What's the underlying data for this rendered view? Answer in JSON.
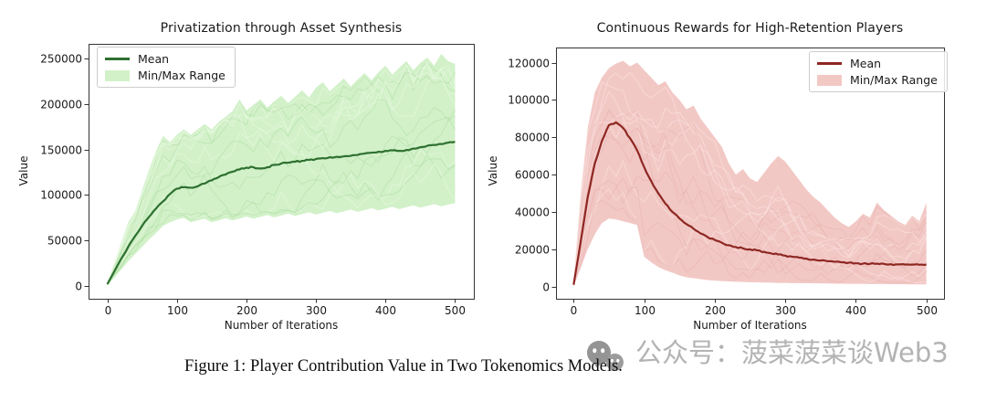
{
  "page": {
    "background": "#ffffff"
  },
  "caption": {
    "text": "Figure 1: Player Contribution Value in Two Tokenomics Models."
  },
  "watermark": {
    "icon": "wechat-icon",
    "text": "公众号：菠菜菠菜谈Web3",
    "color": "#b3b3b3",
    "icon_color": "#949494"
  },
  "chart_data": [
    {
      "type": "line",
      "title": "Privatization through Asset Synthesis",
      "xlabel": "Number of Iterations",
      "ylabel": "Value",
      "legend": [
        {
          "label": "Mean",
          "swatch": "line"
        },
        {
          "label": "Min/Max Range",
          "swatch": "patch"
        }
      ],
      "legend_position": "upper left",
      "grid": false,
      "colors": {
        "mean": "#2e7030",
        "band": "#d2f1c9",
        "runs_dark": "#aedca3",
        "runs_light": "#e9f9e2",
        "axis": "#333333",
        "tick_text": "#1a1a1a"
      },
      "xlim": [
        -27,
        527
      ],
      "ylim": [
        -14000,
        266000
      ],
      "xticks": [
        0,
        100,
        200,
        300,
        400,
        500
      ],
      "yticks": [
        0,
        50000,
        100000,
        150000,
        200000,
        250000
      ],
      "x": [
        0,
        10,
        20,
        30,
        40,
        50,
        60,
        70,
        80,
        90,
        100,
        110,
        120,
        130,
        140,
        150,
        160,
        170,
        180,
        190,
        200,
        210,
        220,
        230,
        240,
        250,
        260,
        270,
        280,
        290,
        300,
        310,
        320,
        330,
        340,
        350,
        360,
        370,
        380,
        390,
        400,
        410,
        420,
        430,
        440,
        450,
        460,
        470,
        480,
        490,
        500
      ],
      "mean": [
        2000,
        16000,
        30000,
        43000,
        55000,
        66000,
        76000,
        85000,
        93000,
        101000,
        107000,
        108500,
        108000,
        109500,
        112500,
        116000,
        119500,
        122500,
        125500,
        128000,
        130000,
        130500,
        129000,
        130500,
        133000,
        134500,
        135500,
        136500,
        137500,
        138500,
        139500,
        140500,
        141500,
        142000,
        142500,
        143000,
        144000,
        145500,
        146500,
        147500,
        148500,
        149000,
        148500,
        149500,
        151000,
        152500,
        154000,
        155000,
        156000,
        157500,
        158500
      ],
      "max": [
        3000,
        25000,
        48000,
        70000,
        82000,
        105000,
        128000,
        148000,
        165000,
        158000,
        166000,
        172000,
        166000,
        172000,
        178000,
        172000,
        180000,
        186000,
        192000,
        205000,
        193000,
        199000,
        205000,
        196000,
        203000,
        209000,
        201000,
        208000,
        215000,
        207000,
        218000,
        224000,
        214000,
        221000,
        228000,
        219000,
        227000,
        234000,
        226000,
        235000,
        242000,
        232000,
        240000,
        247000,
        237000,
        245000,
        251000,
        242000,
        255000,
        247000,
        244000
      ],
      "min": [
        1000,
        9000,
        18000,
        27000,
        35000,
        43000,
        51000,
        58000,
        66000,
        70000,
        73000,
        75000,
        70000,
        72000,
        74000,
        70000,
        72000,
        74500,
        72000,
        74000,
        76500,
        74000,
        76000,
        78000,
        75500,
        77500,
        79500,
        77000,
        79000,
        81000,
        78500,
        80500,
        82500,
        80000,
        82000,
        84000,
        81500,
        83500,
        85500,
        83000,
        85000,
        87000,
        84500,
        86500,
        88500,
        86000,
        88000,
        90000,
        87500,
        89500,
        91000
      ],
      "n_runs": 14,
      "seed": 11
    },
    {
      "type": "line",
      "title": "Continuous Rewards for High-Retention Players",
      "xlabel": "Number of Iterations",
      "ylabel": "Value",
      "legend": [
        {
          "label": "Mean",
          "swatch": "line"
        },
        {
          "label": "Min/Max Range",
          "swatch": "patch"
        }
      ],
      "legend_position": "upper right",
      "grid": false,
      "colors": {
        "mean": "#8e2722",
        "band": "#f2c8c5",
        "runs_dark": "#e7b3af",
        "runs_light": "#fbe6e4",
        "axis": "#333333",
        "tick_text": "#1a1a1a"
      },
      "xlim": [
        -25,
        525
      ],
      "ylim": [
        -6500,
        128100
      ],
      "xticks": [
        0,
        100,
        200,
        300,
        400,
        500
      ],
      "yticks": [
        0,
        20000,
        40000,
        60000,
        80000,
        100000,
        120000
      ],
      "x": [
        0,
        10,
        20,
        30,
        40,
        50,
        60,
        70,
        80,
        90,
        100,
        110,
        120,
        130,
        140,
        150,
        160,
        170,
        180,
        190,
        200,
        210,
        220,
        230,
        240,
        250,
        260,
        270,
        280,
        290,
        300,
        310,
        320,
        330,
        340,
        350,
        360,
        370,
        380,
        390,
        400,
        410,
        420,
        430,
        440,
        450,
        460,
        470,
        480,
        490,
        500
      ],
      "mean": [
        1000,
        24000,
        48000,
        66000,
        78000,
        86500,
        88000,
        85000,
        79500,
        73000,
        64000,
        56500,
        50000,
        44500,
        40000,
        36500,
        33500,
        31000,
        28500,
        26500,
        25000,
        23500,
        22200,
        21200,
        20500,
        20000,
        19400,
        18600,
        17800,
        17200,
        16600,
        16000,
        15500,
        15000,
        14500,
        14000,
        13600,
        13300,
        13000,
        12800,
        12500,
        12300,
        12200,
        12300,
        12200,
        12000,
        11900,
        11800,
        11800,
        11700,
        11800
      ],
      "max": [
        2000,
        50000,
        85000,
        104000,
        112000,
        117000,
        119500,
        121000,
        118000,
        120000,
        116000,
        112000,
        108000,
        110000,
        104000,
        100000,
        95000,
        97000,
        90000,
        85000,
        80000,
        75000,
        66000,
        60000,
        63000,
        58000,
        56000,
        61000,
        66000,
        70000,
        67000,
        62000,
        57000,
        52000,
        48000,
        45000,
        41000,
        37000,
        34000,
        32000,
        35000,
        39000,
        37000,
        45000,
        41000,
        38000,
        35000,
        33000,
        38000,
        35000,
        45000
      ],
      "min": [
        500,
        10000,
        20000,
        28000,
        34000,
        36500,
        36000,
        35000,
        34000,
        33000,
        16000,
        13000,
        10500,
        8800,
        7500,
        6000,
        5000,
        4500,
        4000,
        3500,
        3200,
        3000,
        2800,
        2600,
        2500,
        2400,
        2300,
        2200,
        2100,
        2000,
        2000,
        1900,
        1900,
        1800,
        1800,
        1700,
        1700,
        1600,
        1600,
        1500,
        1500,
        1500,
        1400,
        1400,
        1400,
        1300,
        1300,
        1300,
        1200,
        1200,
        1200
      ],
      "n_runs": 14,
      "seed": 29
    }
  ]
}
